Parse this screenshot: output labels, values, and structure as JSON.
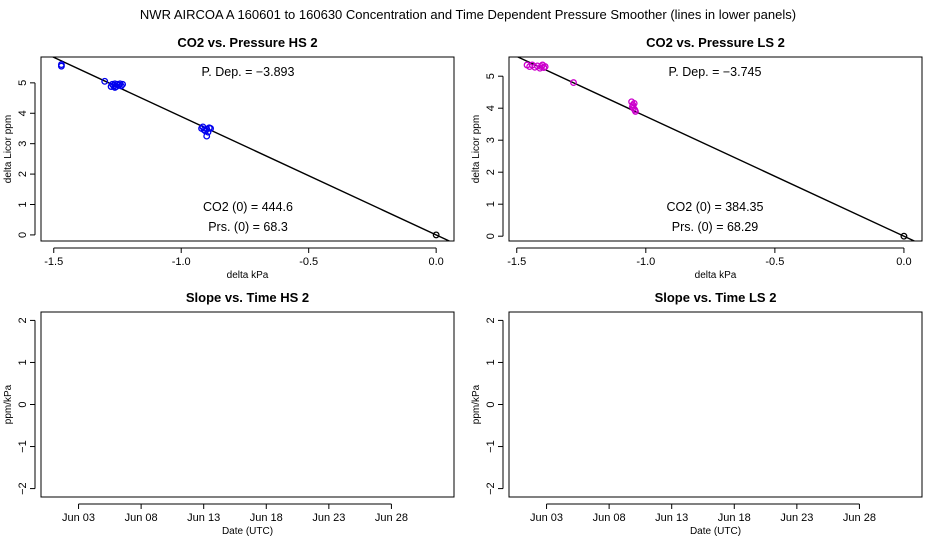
{
  "figure_title": "NWR   AIRCOA A   160601 to 160630   Concentration and Time Dependent Pressure Smoother (lines in lower panels)",
  "chart_data": [
    {
      "id": "hs-pressure",
      "type": "scatter",
      "title": "CO2 vs. Pressure HS 2",
      "xlabel": "delta kPa",
      "ylabel": "delta Licor ppm",
      "xlim": [
        -1.55,
        0.07
      ],
      "ylim": [
        -0.2,
        5.85
      ],
      "xticks": [
        -1.5,
        -1.0,
        -0.5,
        0.0
      ],
      "xtick_labels": [
        "-1.5",
        "-1.0",
        "-0.5",
        "0.0"
      ],
      "yticks": [
        0,
        1,
        2,
        3,
        4,
        5
      ],
      "ytick_labels": [
        "0",
        "1",
        "2",
        "3",
        "4",
        "5"
      ],
      "point_color": "#0000ee",
      "fit_line": {
        "color": "#000000",
        "slope": -3.893,
        "intercept": 0
      },
      "annotations": {
        "pdep": "P. Dep. =  −3.893",
        "co2": "CO2 (0) =  444.6",
        "prs": "Prs. (0) =  68.3"
      },
      "points": [
        {
          "x": -1.47,
          "y": 5.6
        },
        {
          "x": -1.47,
          "y": 5.55
        },
        {
          "x": -1.3,
          "y": 5.05
        },
        {
          "x": -1.27,
          "y": 4.95
        },
        {
          "x": -1.265,
          "y": 4.9
        },
        {
          "x": -1.26,
          "y": 4.97
        },
        {
          "x": -1.255,
          "y": 4.88
        },
        {
          "x": -1.25,
          "y": 4.95
        },
        {
          "x": -1.245,
          "y": 4.92
        },
        {
          "x": -1.24,
          "y": 4.97
        },
        {
          "x": -1.235,
          "y": 4.9
        },
        {
          "x": -1.23,
          "y": 4.95
        },
        {
          "x": -1.26,
          "y": 4.85
        },
        {
          "x": -1.275,
          "y": 4.88
        },
        {
          "x": -0.92,
          "y": 3.5
        },
        {
          "x": -0.91,
          "y": 3.45
        },
        {
          "x": -0.905,
          "y": 3.42
        },
        {
          "x": -0.9,
          "y": 3.48
        },
        {
          "x": -0.895,
          "y": 3.38
        },
        {
          "x": -0.89,
          "y": 3.52
        },
        {
          "x": -0.885,
          "y": 3.5
        },
        {
          "x": -0.9,
          "y": 3.25
        },
        {
          "x": -0.915,
          "y": 3.55
        },
        {
          "x": 0.0,
          "y": 0.0
        }
      ]
    },
    {
      "id": "ls-pressure",
      "type": "scatter",
      "title": "CO2 vs. Pressure LS 2",
      "xlabel": "delta kPa",
      "ylabel": "delta Licor ppm",
      "xlim": [
        -1.53,
        0.07
      ],
      "ylim": [
        -0.15,
        5.6
      ],
      "xticks": [
        -1.5,
        -1.0,
        -0.5,
        0.0
      ],
      "xtick_labels": [
        "-1.5",
        "-1.0",
        "-0.5",
        "0.0"
      ],
      "yticks": [
        0,
        1,
        2,
        3,
        4,
        5
      ],
      "ytick_labels": [
        "0",
        "1",
        "2",
        "3",
        "4",
        "5"
      ],
      "point_color": "#cc00cc",
      "fit_line": {
        "color": "#000000",
        "slope": -3.745,
        "intercept": 0
      },
      "annotations": {
        "pdep": "P. Dep. =  −3.745",
        "co2": "CO2 (0) =  384.35",
        "prs": "Prs. (0) =  68.29"
      },
      "points": [
        {
          "x": -1.46,
          "y": 5.35
        },
        {
          "x": -1.45,
          "y": 5.3
        },
        {
          "x": -1.44,
          "y": 5.35
        },
        {
          "x": -1.43,
          "y": 5.28
        },
        {
          "x": -1.42,
          "y": 5.32
        },
        {
          "x": -1.41,
          "y": 5.25
        },
        {
          "x": -1.405,
          "y": 5.3
        },
        {
          "x": -1.4,
          "y": 5.35
        },
        {
          "x": -1.395,
          "y": 5.27
        },
        {
          "x": -1.39,
          "y": 5.3
        },
        {
          "x": -1.28,
          "y": 4.8
        },
        {
          "x": -1.055,
          "y": 4.2
        },
        {
          "x": -1.05,
          "y": 4.1
        },
        {
          "x": -1.048,
          "y": 4.0
        },
        {
          "x": -1.045,
          "y": 4.15
        },
        {
          "x": -1.043,
          "y": 3.95
        },
        {
          "x": -1.04,
          "y": 3.9
        },
        {
          "x": -1.052,
          "y": 4.05
        },
        {
          "x": 0.0,
          "y": 0.0
        }
      ]
    },
    {
      "id": "hs-time",
      "type": "line",
      "title": "Slope vs. Time HS 2",
      "xlabel": "Date (UTC)",
      "ylabel": "ppm/kPa",
      "xlim": [
        0,
        33
      ],
      "ylim": [
        -2.2,
        2.2
      ],
      "xticks": [
        3,
        8,
        13,
        18,
        23,
        28
      ],
      "xtick_labels": [
        "Jun 03",
        "Jun 08",
        "Jun 13",
        "Jun 18",
        "Jun 23",
        "Jun 28"
      ],
      "yticks": [
        -2,
        -1,
        0,
        1,
        2
      ],
      "ytick_labels": [
        "−2",
        "−1",
        "0",
        "1",
        "2"
      ],
      "series": []
    },
    {
      "id": "ls-time",
      "type": "line",
      "title": "Slope vs. Time LS 2",
      "xlabel": "Date (UTC)",
      "ylabel": "ppm/kPa",
      "xlim": [
        0,
        33
      ],
      "ylim": [
        -2.2,
        2.2
      ],
      "xticks": [
        3,
        8,
        13,
        18,
        23,
        28
      ],
      "xtick_labels": [
        "Jun 03",
        "Jun 08",
        "Jun 13",
        "Jun 18",
        "Jun 23",
        "Jun 28"
      ],
      "yticks": [
        -2,
        -1,
        0,
        1,
        2
      ],
      "ytick_labels": [
        "−2",
        "−1",
        "0",
        "1",
        "2"
      ],
      "series": []
    }
  ]
}
